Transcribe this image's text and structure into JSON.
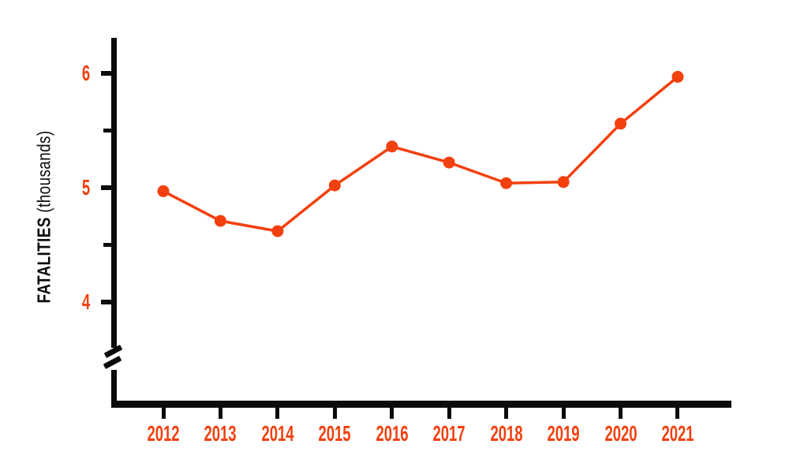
{
  "colors": {
    "accent": "#F2400F",
    "axis": "#0B0B0B",
    "background": "#FFFFFF"
  },
  "chart_data": {
    "type": "line",
    "title": "",
    "ylabel": "FATALITIES (thousands)",
    "ylabel_main": "FATALITIES",
    "ylabel_unit": "(thousands)",
    "xlabel": "",
    "categories": [
      "2012",
      "2013",
      "2014",
      "2015",
      "2016",
      "2017",
      "2018",
      "2019",
      "2020",
      "2021"
    ],
    "values": [
      4.97,
      4.71,
      4.62,
      5.02,
      5.36,
      5.22,
      5.04,
      5.05,
      5.56,
      5.97
    ],
    "y_major_ticks": [
      4,
      5,
      6
    ],
    "y_minor_ticks": [
      4.5,
      5.5
    ],
    "ylim_display": [
      3.6,
      6.65
    ],
    "axis_break_below": 4,
    "grid": false,
    "legend_position": "none",
    "marker": "circle",
    "line_color": "#F2400F",
    "marker_color": "#F2400F"
  }
}
